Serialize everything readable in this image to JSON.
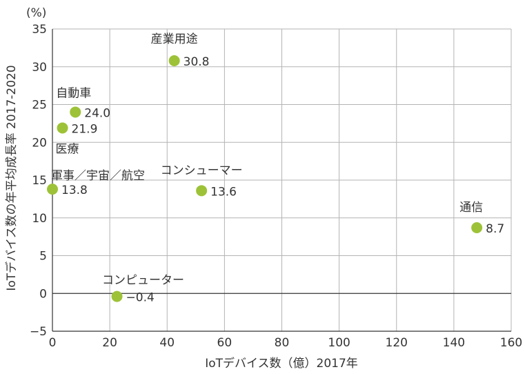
{
  "chart_data": {
    "type": "scatter",
    "xlabel": "IoTデバイス数（億）2017年",
    "ylabel": "IoTデバイス数の年平均成長率 2017-2020",
    "yunit": "(%)",
    "xlim": [
      0,
      160
    ],
    "ylim": [
      -5,
      35
    ],
    "xticks": [
      0,
      20,
      40,
      60,
      80,
      100,
      120,
      140,
      160
    ],
    "yticks": [
      -5,
      0,
      5,
      10,
      15,
      20,
      25,
      30,
      35
    ],
    "grid": true,
    "points": [
      {
        "name": "産業用途",
        "x": 42.5,
        "y": 30.8,
        "label": "30.8"
      },
      {
        "name": "自動車",
        "x": 8,
        "y": 24.0,
        "label": "24.0"
      },
      {
        "name": "医療",
        "x": 3.5,
        "y": 21.9,
        "label": "21.9"
      },
      {
        "name": "軍事／宇宙／航空",
        "x": 0,
        "y": 13.8,
        "label": "13.8"
      },
      {
        "name": "コンシューマー",
        "x": 52,
        "y": 13.6,
        "label": "13.6"
      },
      {
        "name": "通信",
        "x": 148,
        "y": 8.7,
        "label": "8.7"
      },
      {
        "name": "コンピューター",
        "x": 22.5,
        "y": -0.4,
        "label": "−0.4"
      }
    ],
    "colors": {
      "point": "#9dc238",
      "grid": "#b3b3b3",
      "axis": "#333333"
    }
  }
}
